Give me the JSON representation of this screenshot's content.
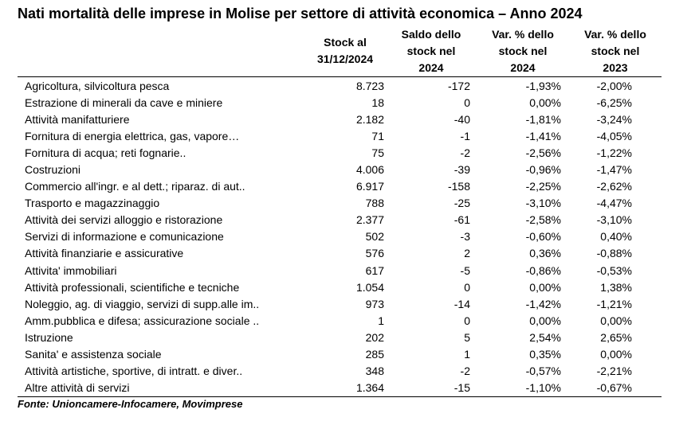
{
  "title": "Nati mortalità delle imprese in Molise per settore di attività economica – Anno 2024",
  "source": "Fonte: Unioncamere-Infocamere, Movimprese",
  "chart_data": {
    "type": "table",
    "title": "Nati mortalità delle imprese in Molise per settore di attività economica – Anno 2024",
    "columns": [
      [
        "Stock al",
        "31/12/2024"
      ],
      [
        "Saldo dello",
        "stock nel",
        "2024"
      ],
      [
        "Var. % dello",
        "stock nel",
        "2024"
      ],
      [
        "Var. % dello",
        "stock nel",
        "2023"
      ]
    ],
    "rows": [
      {
        "label": "Agricoltura, silvicoltura pesca",
        "stock": "8.723",
        "saldo": "-172",
        "var2024": "-1,93%",
        "var2023": "-2,00%"
      },
      {
        "label": "Estrazione di minerali da cave e miniere",
        "stock": "18",
        "saldo": "0",
        "var2024": "0,00%",
        "var2023": "-6,25%"
      },
      {
        "label": "Attività manifatturiere",
        "stock": "2.182",
        "saldo": "-40",
        "var2024": "-1,81%",
        "var2023": "-3,24%"
      },
      {
        "label": "Fornitura di energia elettrica, gas, vapore…",
        "stock": "71",
        "saldo": "-1",
        "var2024": "-1,41%",
        "var2023": "-4,05%"
      },
      {
        "label": "Fornitura di acqua; reti fognarie..",
        "stock": "75",
        "saldo": "-2",
        "var2024": "-2,56%",
        "var2023": "-1,22%"
      },
      {
        "label": "Costruzioni",
        "stock": "4.006",
        "saldo": "-39",
        "var2024": "-0,96%",
        "var2023": "-1,47%"
      },
      {
        "label": "Commercio all'ingr. e al dett.; riparaz. di aut..",
        "stock": "6.917",
        "saldo": "-158",
        "var2024": "-2,25%",
        "var2023": "-2,62%"
      },
      {
        "label": "Trasporto e magazzinaggio",
        "stock": "788",
        "saldo": "-25",
        "var2024": "-3,10%",
        "var2023": "-4,47%"
      },
      {
        "label": "Attività dei servizi alloggio e ristorazione",
        "stock": "2.377",
        "saldo": "-61",
        "var2024": "-2,58%",
        "var2023": "-3,10%"
      },
      {
        "label": "Servizi di informazione e comunicazione",
        "stock": "502",
        "saldo": "-3",
        "var2024": "-0,60%",
        "var2023": "0,40%"
      },
      {
        "label": "Attività finanziarie e assicurative",
        "stock": "576",
        "saldo": "2",
        "var2024": "0,36%",
        "var2023": "-0,88%"
      },
      {
        "label": "Attivita' immobiliari",
        "stock": "617",
        "saldo": "-5",
        "var2024": "-0,86%",
        "var2023": "-0,53%"
      },
      {
        "label": "Attività professionali, scientifiche e tecniche",
        "stock": "1.054",
        "saldo": "0",
        "var2024": "0,00%",
        "var2023": "1,38%"
      },
      {
        "label": "Noleggio, ag. di viaggio, servizi di supp.alle im..",
        "stock": "973",
        "saldo": "-14",
        "var2024": "-1,42%",
        "var2023": "-1,21%"
      },
      {
        "label": "Amm.pubblica e difesa; assicurazione sociale ..",
        "stock": "1",
        "saldo": "0",
        "var2024": "0,00%",
        "var2023": "0,00%"
      },
      {
        "label": "Istruzione",
        "stock": "202",
        "saldo": "5",
        "var2024": "2,54%",
        "var2023": "2,65%"
      },
      {
        "label": "Sanita' e assistenza sociale",
        "stock": "285",
        "saldo": "1",
        "var2024": "0,35%",
        "var2023": "0,00%"
      },
      {
        "label": "Attività artistiche, sportive, di intratt. e diver..",
        "stock": "348",
        "saldo": "-2",
        "var2024": "-0,57%",
        "var2023": "-2,21%"
      },
      {
        "label": "Altre attività di servizi",
        "stock": "1.364",
        "saldo": "-15",
        "var2024": "-1,10%",
        "var2023": "-0,67%"
      }
    ]
  }
}
